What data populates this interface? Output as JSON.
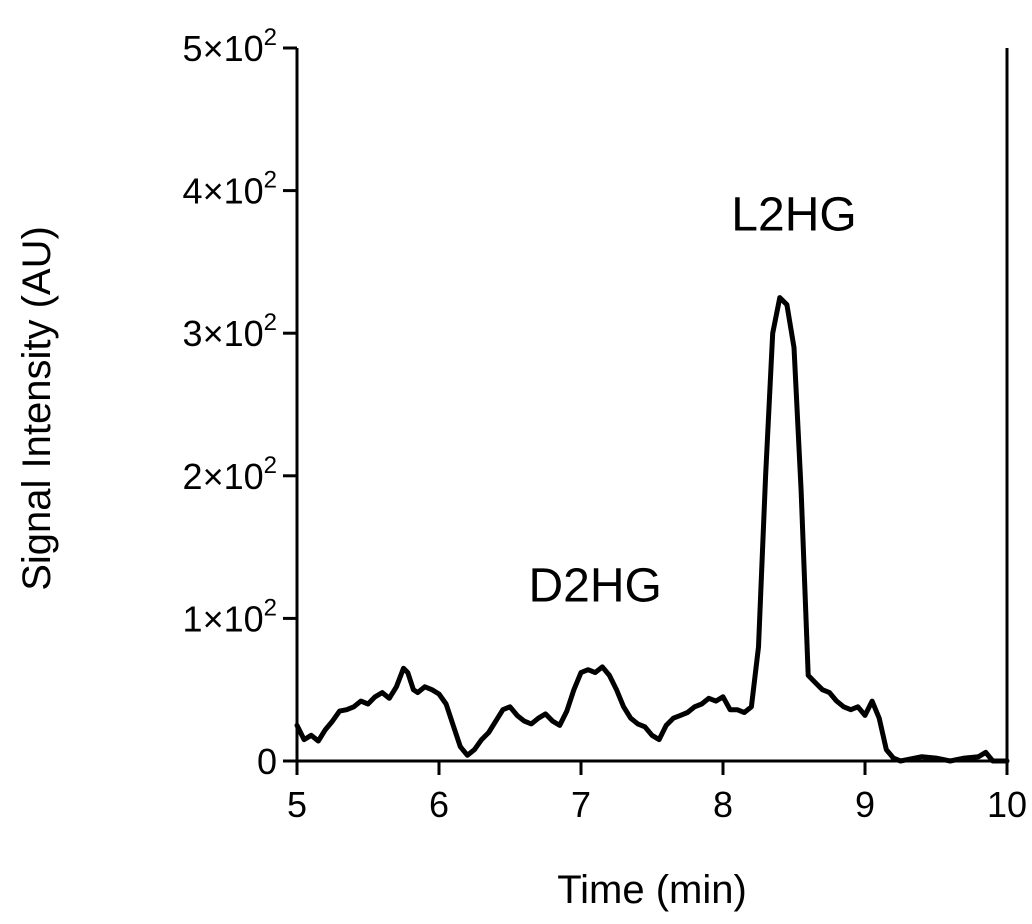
{
  "chart_data": {
    "type": "line",
    "title": "",
    "xlabel": "Time (min)",
    "ylabel": "Signal Intensity (AU)",
    "xlim": [
      5,
      10
    ],
    "ylim": [
      0,
      500
    ],
    "grid": false,
    "legend": "none",
    "line_color": "#000000",
    "x_ticks": [
      5,
      6,
      7,
      8,
      9,
      10
    ],
    "x_tick_labels": [
      "5",
      "6",
      "7",
      "8",
      "9",
      "10"
    ],
    "y_ticks": [
      {
        "value": 0,
        "mantissa": "0",
        "exponent": ""
      },
      {
        "value": 100,
        "mantissa": "1×10",
        "exponent": "2"
      },
      {
        "value": 200,
        "mantissa": "2×10",
        "exponent": "2"
      },
      {
        "value": 300,
        "mantissa": "3×10",
        "exponent": "2"
      },
      {
        "value": 400,
        "mantissa": "4×10",
        "exponent": "2"
      },
      {
        "value": 500,
        "mantissa": "5×10",
        "exponent": "2"
      }
    ],
    "annotations": [
      {
        "text": "D2HG",
        "x": 7.1,
        "y": 112
      },
      {
        "text": "L2HG",
        "x": 8.5,
        "y": 372
      }
    ],
    "series": [
      {
        "x": [
          5.0,
          5.05,
          5.1,
          5.15,
          5.2,
          5.25,
          5.3,
          5.35,
          5.4,
          5.45,
          5.5,
          5.55,
          5.6,
          5.65,
          5.7,
          5.75,
          5.78,
          5.82,
          5.85,
          5.9,
          5.95,
          6.0,
          6.05,
          6.1,
          6.15,
          6.2,
          6.25,
          6.3,
          6.35,
          6.4,
          6.45,
          6.5,
          6.55,
          6.6,
          6.65,
          6.7,
          6.75,
          6.8,
          6.85,
          6.9,
          6.95,
          7.0,
          7.05,
          7.1,
          7.15,
          7.2,
          7.25,
          7.3,
          7.35,
          7.4,
          7.45,
          7.5,
          7.55,
          7.6,
          7.65,
          7.7,
          7.75,
          7.8,
          7.85,
          7.9,
          7.95,
          8.0,
          8.05,
          8.1,
          8.15,
          8.2,
          8.25,
          8.3,
          8.35,
          8.4,
          8.45,
          8.5,
          8.55,
          8.6,
          8.65,
          8.7,
          8.75,
          8.8,
          8.85,
          8.9,
          8.95,
          9.0,
          9.05,
          9.1,
          9.15,
          9.2,
          9.25,
          9.3,
          9.4,
          9.5,
          9.6,
          9.7,
          9.8,
          9.85,
          9.9,
          10.0
        ],
        "values": [
          25,
          15,
          18,
          14,
          22,
          28,
          35,
          36,
          38,
          42,
          40,
          45,
          48,
          44,
          52,
          65,
          62,
          50,
          48,
          52,
          50,
          47,
          40,
          25,
          10,
          4,
          8,
          15,
          20,
          28,
          36,
          38,
          32,
          28,
          26,
          30,
          33,
          28,
          25,
          35,
          50,
          62,
          64,
          62,
          66,
          60,
          50,
          38,
          30,
          26,
          24,
          18,
          15,
          25,
          30,
          32,
          34,
          38,
          40,
          44,
          42,
          45,
          36,
          36,
          34,
          38,
          80,
          200,
          300,
          325,
          320,
          290,
          190,
          60,
          55,
          50,
          48,
          42,
          38,
          36,
          38,
          32,
          42,
          30,
          8,
          2,
          0,
          1,
          3,
          2,
          0,
          2,
          3,
          6,
          0,
          0
        ]
      }
    ]
  }
}
